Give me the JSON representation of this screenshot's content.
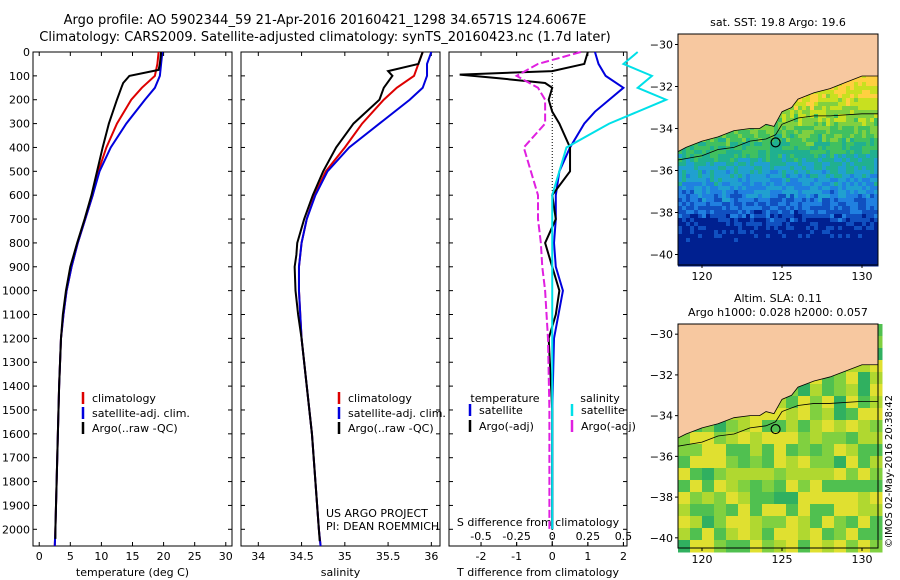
{
  "header": {
    "line1": "Argo profile: AO 5902344_59 21-Apr-2016 20160421_1298 34.6571S 124.6067E",
    "line2": "Climatology: CARS2009. Satellite-adjusted climatology: synTS_20160423.nc (1.7d later)"
  },
  "colors": {
    "climatology": "#dd0000",
    "satellite": "#0000dd",
    "argo": "#000000",
    "sat_salinity": "#00e0e8",
    "argo_salinity": "#e020e0",
    "land": "#f7c8a0"
  },
  "chart_data": [
    {
      "type": "line",
      "id": "temperature",
      "xlabel": "temperature (deg C)",
      "ylabel": "",
      "xlim": [
        -1,
        31
      ],
      "ylim": [
        2070,
        0
      ],
      "xticks": [
        0,
        5,
        10,
        15,
        20,
        25,
        30
      ],
      "yticks": [
        0,
        100,
        200,
        300,
        400,
        500,
        600,
        700,
        800,
        900,
        1000,
        1100,
        1200,
        1300,
        1400,
        1500,
        1600,
        1700,
        1800,
        1900,
        2000
      ],
      "legend": [
        "climatology",
        "satellite-adj. clim.",
        "Argo(..raw -QC)"
      ],
      "series": [
        {
          "name": "climatology",
          "depth": [
            0,
            50,
            100,
            150,
            200,
            300,
            400,
            500,
            600,
            700,
            800,
            900,
            1000,
            1100,
            1200,
            1400,
            1600,
            1800,
            2000,
            2070
          ],
          "values": [
            19.2,
            19.0,
            18.6,
            16.5,
            14.8,
            12.5,
            10.8,
            9.5,
            8.6,
            7.4,
            6.2,
            5.2,
            4.4,
            3.9,
            3.5,
            3.2,
            3.0,
            2.8,
            2.6,
            2.5
          ]
        },
        {
          "name": "satellite-adj. clim.",
          "depth": [
            0,
            50,
            100,
            150,
            200,
            300,
            400,
            500,
            600,
            700,
            800,
            900,
            1000,
            1100,
            1200,
            1400,
            1600,
            1800,
            2000,
            2070
          ],
          "values": [
            19.8,
            19.6,
            19.4,
            18.6,
            17.0,
            14.0,
            11.5,
            9.7,
            8.6,
            7.4,
            6.2,
            5.2,
            4.4,
            3.9,
            3.5,
            3.2,
            3.0,
            2.8,
            2.6,
            2.5
          ]
        },
        {
          "name": "Argo(..raw -QC)",
          "depth": [
            0,
            50,
            75,
            100,
            130,
            150,
            200,
            300,
            400,
            500,
            600,
            700,
            800,
            900,
            1000,
            1100,
            1200,
            1400,
            1600,
            1800,
            2000,
            2040
          ],
          "values": [
            19.6,
            19.4,
            19.2,
            14.5,
            13.5,
            13.2,
            12.5,
            11.2,
            10.2,
            9.3,
            8.4,
            7.3,
            6.1,
            5.0,
            4.3,
            3.8,
            3.5,
            3.2,
            3.0,
            2.8,
            2.6,
            2.6
          ]
        }
      ]
    },
    {
      "type": "line",
      "id": "salinity",
      "xlabel": "salinity",
      "xlim": [
        33.8,
        36.1
      ],
      "xticks": [
        34,
        34.5,
        35,
        35.5,
        36
      ],
      "xtick_labels": [
        "34",
        "34.5",
        "35",
        "35.5",
        "36"
      ],
      "legend": [
        "climatology",
        "satellite-adj. clim.",
        "Argo(..raw -QC)"
      ],
      "annotation": [
        "US ARGO PROJECT",
        "PI: DEAN ROEMMICH"
      ],
      "series": [
        {
          "name": "climatology",
          "depth": [
            0,
            50,
            100,
            150,
            200,
            300,
            400,
            500,
            600,
            700,
            800,
            900,
            1000,
            1200,
            1400,
            1600,
            1800,
            2000,
            2070
          ],
          "values": [
            35.9,
            35.85,
            35.8,
            35.6,
            35.45,
            35.2,
            35.0,
            34.78,
            34.65,
            34.56,
            34.5,
            34.47,
            34.47,
            34.5,
            34.56,
            34.62,
            34.66,
            34.7,
            34.72
          ]
        },
        {
          "name": "satellite-adj. clim.",
          "depth": [
            0,
            50,
            100,
            150,
            200,
            300,
            400,
            500,
            600,
            700,
            800,
            900,
            1000,
            1200,
            1400,
            1600,
            1800,
            2000,
            2070
          ],
          "values": [
            36.0,
            35.95,
            35.95,
            35.9,
            35.75,
            35.4,
            35.05,
            34.8,
            34.66,
            34.56,
            34.5,
            34.47,
            34.47,
            34.5,
            34.56,
            34.62,
            34.66,
            34.7,
            34.72
          ]
        },
        {
          "name": "Argo(..raw -QC)",
          "depth": [
            0,
            50,
            80,
            100,
            150,
            200,
            300,
            400,
            500,
            600,
            700,
            800,
            850,
            900,
            1000,
            1100,
            1200,
            1400,
            1600,
            1800,
            2000,
            2050
          ],
          "values": [
            35.9,
            35.85,
            35.5,
            35.55,
            35.45,
            35.4,
            35.1,
            34.9,
            34.75,
            34.63,
            34.53,
            34.45,
            34.44,
            34.42,
            34.43,
            34.46,
            34.5,
            34.56,
            34.62,
            34.66,
            34.7,
            34.71
          ]
        }
      ]
    },
    {
      "type": "line",
      "id": "difference",
      "xlabel": "T difference from climatology",
      "xlabel_top": "S difference from climatology",
      "xlim": [
        -2.9,
        2.1
      ],
      "xticks": [
        -2,
        -1,
        0,
        1,
        2
      ],
      "sticks": [
        -0.5,
        -0.25,
        0,
        0.25,
        0.5
      ],
      "stick_labels": [
        "-0.5",
        "-0.25",
        "0",
        "0.25",
        "0.5"
      ],
      "legend_headers": [
        "temperature",
        "salinity"
      ],
      "legend": [
        "satellite",
        "Argo(-adj)",
        "satellite",
        "Argo(-adj)"
      ],
      "series": [
        {
          "name": "T satellite",
          "depth": [
            0,
            50,
            100,
            150,
            200,
            250,
            300,
            400,
            500,
            600,
            700,
            800,
            900,
            1000,
            1200,
            1500,
            2000
          ],
          "values": [
            1.2,
            1.3,
            1.5,
            2.0,
            1.6,
            1.2,
            0.9,
            0.5,
            0.2,
            0.1,
            0.1,
            0.05,
            0.1,
            0.3,
            0.05,
            0.0,
            0.0
          ]
        },
        {
          "name": "T Argo(-adj)",
          "depth": [
            0,
            50,
            80,
            95,
            110,
            130,
            150,
            200,
            250,
            300,
            400,
            500,
            600,
            700,
            800,
            900,
            1000,
            1100,
            1200,
            1500,
            2000
          ],
          "values": [
            1.0,
            0.9,
            0.0,
            -2.6,
            -1.5,
            -0.2,
            0.0,
            -0.1,
            0.0,
            0.2,
            0.5,
            0.5,
            0.0,
            0.1,
            -0.2,
            0.0,
            0.2,
            0.1,
            -0.1,
            0.0,
            0.0
          ]
        },
        {
          "name": "S satellite",
          "depth": [
            0,
            50,
            100,
            150,
            200,
            300,
            400,
            500,
            600,
            700,
            800,
            1000,
            1500,
            2000
          ],
          "values": [
            0.6,
            0.5,
            0.7,
            0.6,
            0.8,
            0.4,
            0.1,
            0.05,
            0.0,
            0.0,
            0.0,
            0.0,
            0.0,
            0.0
          ]
        },
        {
          "name": "S Argo(-adj)",
          "depth": [
            0,
            50,
            100,
            150,
            200,
            300,
            400,
            500,
            600,
            700,
            800,
            900,
            1000,
            1200,
            1500,
            1800,
            2000
          ],
          "values": [
            0.2,
            -0.1,
            -0.25,
            -0.1,
            -0.05,
            -0.05,
            -0.2,
            -0.15,
            -0.1,
            -0.1,
            -0.08,
            -0.07,
            -0.05,
            -0.03,
            -0.02,
            -0.02,
            -0.02
          ]
        }
      ]
    },
    {
      "type": "heatmap",
      "id": "sst-map",
      "title": "sat. SST: 19.8 Argo: 19.6",
      "xlim": [
        118.5,
        131
      ],
      "ylim": [
        -40.5,
        -29.5
      ],
      "xticks": [
        120,
        125,
        130
      ],
      "yticks": [
        -30,
        -32,
        -34,
        -36,
        -38,
        -40
      ],
      "xtick_labels": [
        "120",
        "125",
        "130"
      ],
      "ytick_labels": [
        "−30",
        "−32",
        "−34",
        "−36",
        "−38",
        "−40"
      ],
      "float_position": [
        124.6,
        -34.66
      ]
    },
    {
      "type": "heatmap",
      "id": "sla-map",
      "title": [
        "Altim. SLA: 0.11",
        "Argo h1000: 0.028 h2000: 0.057"
      ],
      "xlim": [
        118.5,
        131
      ],
      "ylim": [
        -40.5,
        -29.5
      ],
      "xticks": [
        120,
        125,
        130
      ],
      "yticks": [
        -30,
        -32,
        -34,
        -36,
        -38,
        -40
      ],
      "xtick_labels": [
        "120",
        "125",
        "130"
      ],
      "ytick_labels": [
        "−30",
        "−32",
        "−34",
        "−36",
        "−38",
        "−40"
      ],
      "float_position": [
        124.6,
        -34.66
      ]
    }
  ],
  "credit": "©IMOS 02-May-2016 20:38:42"
}
